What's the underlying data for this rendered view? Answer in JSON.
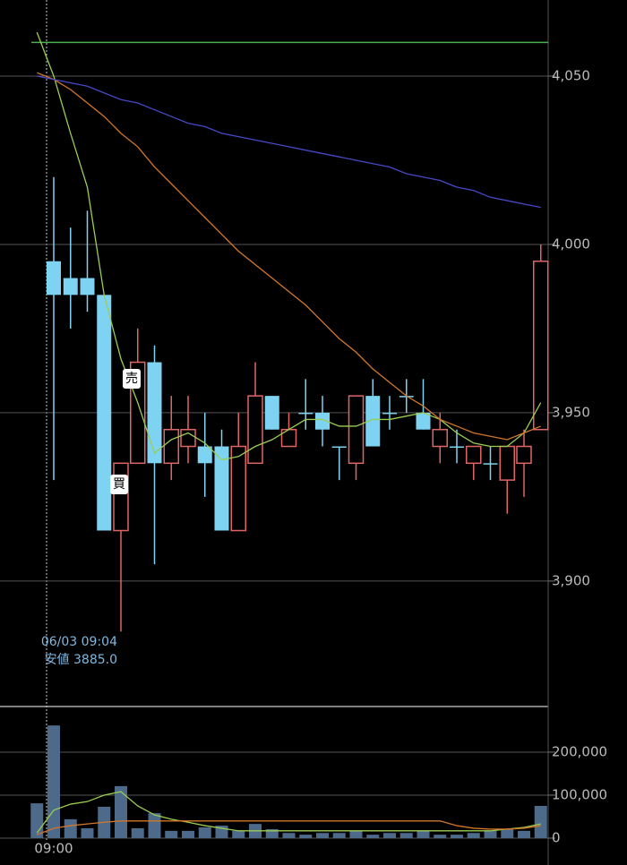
{
  "chart_data": [
    {
      "type": "candlestick",
      "categories": [
        null,
        "09:00",
        null,
        null,
        null,
        null,
        null,
        null,
        null,
        null,
        null,
        null,
        null,
        null,
        null,
        null,
        null,
        null,
        null,
        null,
        null,
        null,
        null,
        null,
        null,
        null,
        null,
        null,
        null,
        null,
        null
      ],
      "open": [
        null,
        3995,
        3990,
        3990,
        3985,
        3915,
        3935,
        3965,
        3935,
        3940,
        3940,
        3940,
        3915,
        3935,
        3955,
        3940,
        3950,
        3950,
        3940,
        3935,
        3955,
        3950,
        3955,
        3950,
        3940,
        3940,
        3935,
        3935,
        3930,
        3935,
        3945
      ],
      "high": [
        null,
        4020,
        4005,
        4010,
        3985,
        3935,
        3975,
        3970,
        3955,
        3955,
        3950,
        3945,
        3950,
        3965,
        3955,
        3950,
        3960,
        3955,
        3940,
        3955,
        3960,
        3955,
        3960,
        3960,
        3950,
        3945,
        3940,
        3940,
        3940,
        3945,
        4000
      ],
      "low": [
        null,
        3930,
        3975,
        3980,
        3915,
        3885,
        3935,
        3905,
        3930,
        3935,
        3925,
        3915,
        3915,
        3935,
        3945,
        3940,
        3945,
        3940,
        3930,
        3930,
        3940,
        3945,
        3950,
        3945,
        3935,
        3935,
        3930,
        3930,
        3920,
        3925,
        3945
      ],
      "close": [
        null,
        3985,
        3985,
        3985,
        3915,
        3935,
        3965,
        3935,
        3945,
        3945,
        3935,
        3915,
        3940,
        3955,
        3945,
        3945,
        3950,
        3945,
        3940,
        3955,
        3940,
        3950,
        3955,
        3945,
        3945,
        3940,
        3940,
        3935,
        3940,
        3940,
        3995
      ],
      "up_color": "#e06666",
      "down_color": "#7fd3f2",
      "lines": [
        {
          "color": "#9acd52",
          "values": [
            4063,
            4050,
            4033,
            4017,
            3985,
            3966,
            3953,
            3938,
            3942,
            3944,
            3941,
            3936,
            3937,
            3940,
            3942,
            3945,
            3948,
            3948,
            3946,
            3946,
            3948,
            3948,
            3949,
            3950,
            3948,
            3944,
            3941,
            3940,
            3940,
            3944,
            3953
          ]
        },
        {
          "color": "#d2772a",
          "values": [
            4051,
            4049,
            4046,
            4042,
            4038,
            4033,
            4029,
            4023,
            4018,
            4013,
            4008,
            4003,
            3998,
            3994,
            3990,
            3986,
            3982,
            3977,
            3972,
            3968,
            3963,
            3959,
            3955,
            3952,
            3948,
            3946,
            3944,
            3943,
            3942,
            3944,
            3946
          ]
        },
        {
          "color": "#4848c8",
          "values": [
            4050,
            4049,
            4048,
            4047,
            4045,
            4043,
            4042,
            4040,
            4038,
            4036,
            4035,
            4033,
            4032,
            4031,
            4030,
            4029,
            4028,
            4027,
            4026,
            4025,
            4024,
            4023,
            4021,
            4020,
            4019,
            4017,
            4016,
            4014,
            4013,
            4012,
            4011
          ]
        }
      ],
      "reference_line": {
        "value": 4060,
        "color": "#4caf50"
      },
      "ylim": [
        3863,
        4072.6
      ],
      "yticks": [
        {
          "value": 3900,
          "label": "3,900"
        },
        {
          "value": 3950,
          "label": "3,950"
        },
        {
          "value": 4000,
          "label": "4,000"
        },
        {
          "value": 4050,
          "label": "4,050"
        }
      ],
      "grid": true,
      "annotations": [
        "06/03 09:04",
        "安値 3885.0"
      ],
      "signals": [
        "売",
        "買"
      ]
    },
    {
      "type": "bar",
      "values": [
        81000,
        262000,
        44000,
        23000,
        73000,
        121000,
        23000,
        58000,
        17000,
        17000,
        25000,
        29000,
        17000,
        33000,
        21000,
        12000,
        8000,
        12000,
        12000,
        17000,
        8000,
        12000,
        12000,
        17000,
        8000,
        8000,
        12000,
        17000,
        21000,
        17000,
        75000
      ],
      "color": "#4d6a8a",
      "lines": [
        {
          "color": "#9acd52",
          "values": [
            12000,
            65000,
            79000,
            85000,
            100000,
            108000,
            75000,
            54000,
            44000,
            37000,
            29000,
            23000,
            17000,
            17000,
            17000,
            17000,
            17000,
            17000,
            17000,
            17000,
            17000,
            17000,
            17000,
            17000,
            17000,
            17000,
            17000,
            17000,
            21000,
            25000,
            33000
          ]
        },
        {
          "color": "#d2772a",
          "values": [
            8000,
            23000,
            29000,
            33000,
            37000,
            40000,
            40000,
            40000,
            40000,
            40000,
            40000,
            40000,
            40000,
            40000,
            40000,
            40000,
            40000,
            40000,
            40000,
            40000,
            40000,
            40000,
            40000,
            40000,
            40000,
            29000,
            23000,
            21000,
            21000,
            23000,
            29000
          ]
        }
      ],
      "ylim": [
        0,
        304000
      ],
      "yticks": [
        0,
        {
          "value": 100000,
          "label": "100,000"
        },
        {
          "value": 200000,
          "label": "200,000"
        }
      ],
      "grid": true
    }
  ]
}
